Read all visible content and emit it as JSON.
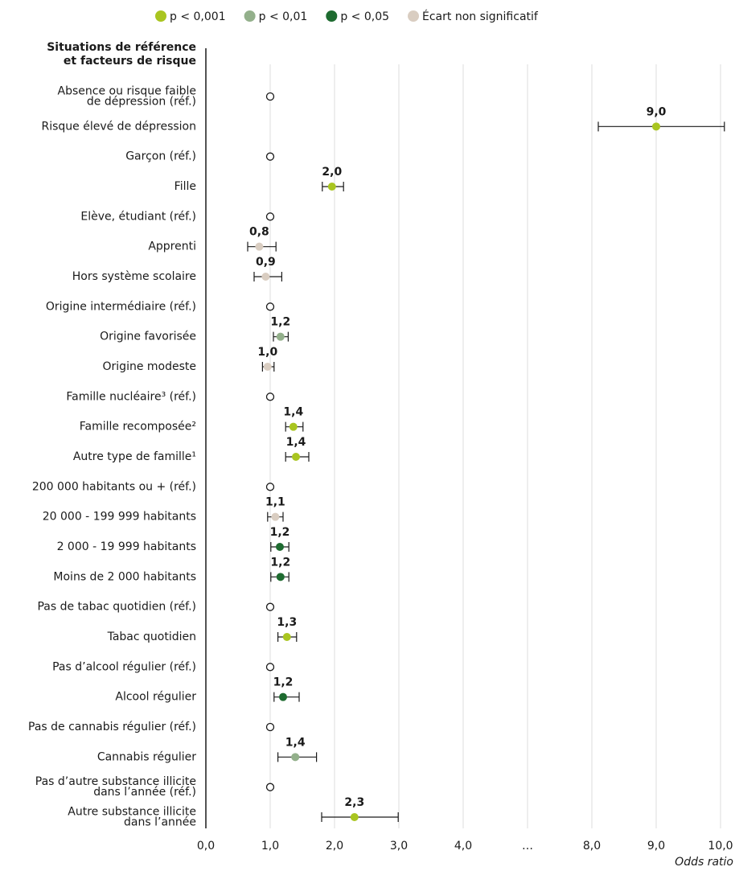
{
  "chart_data": {
    "type": "forest",
    "header": [
      "Situations de référence",
      "et facteurs de risque"
    ],
    "series": [
      {
        "name": "p < 0,001",
        "color": "#a9c520"
      },
      {
        "name": "p < 0,01",
        "color": "#93b08b"
      },
      {
        "name": "p < 0,05",
        "color": "#1e6b30"
      },
      {
        "name": "Écart non significatif",
        "color": "#d9cdc1"
      }
    ],
    "rows": [
      {
        "label": [
          "Absence ou risque faible",
          "de dépression (réf.)"
        ],
        "value": 1,
        "reference": true
      },
      {
        "label": [
          "Risque élevé de dépression"
        ],
        "value": 9.0,
        "value_label": "9,0",
        "ci": [
          8.1,
          10.06
        ],
        "series": 0
      },
      {
        "label": [
          "Garçon (réf.)"
        ],
        "value": 1,
        "reference": true
      },
      {
        "label": [
          "Fille"
        ],
        "value": 1.96,
        "value_label": "2,0",
        "ci": [
          1.81,
          2.14
        ],
        "series": 0
      },
      {
        "label": [
          "Elève, étudiant (réf.)"
        ],
        "value": 1,
        "reference": true
      },
      {
        "label": [
          "Apprenti"
        ],
        "value": 0.83,
        "value_label": "0,8",
        "ci": [
          0.65,
          1.09
        ],
        "series": 3
      },
      {
        "label": [
          "Hors système scolaire"
        ],
        "value": 0.93,
        "value_label": "0,9",
        "ci": [
          0.75,
          1.18
        ],
        "series": 3
      },
      {
        "label": [
          "Origine intermédiaire (réf.)"
        ],
        "value": 1,
        "reference": true
      },
      {
        "label": [
          "Origine favorisée"
        ],
        "value": 1.16,
        "value_label": "1,2",
        "ci": [
          1.05,
          1.28
        ],
        "series": 1
      },
      {
        "label": [
          "Origine modeste"
        ],
        "value": 0.96,
        "value_label": "1,0",
        "ci": [
          0.88,
          1.06
        ],
        "series": 3
      },
      {
        "label": [
          "Famille nucléaire³ (réf.)"
        ],
        "value": 1,
        "reference": true
      },
      {
        "label": [
          "Famille recomposée²"
        ],
        "value": 1.36,
        "value_label": "1,4",
        "ci": [
          1.24,
          1.51
        ],
        "series": 0
      },
      {
        "label": [
          "Autre type de famille¹"
        ],
        "value": 1.4,
        "value_label": "1,4",
        "ci": [
          1.24,
          1.6
        ],
        "series": 0
      },
      {
        "label": [
          "200 000 habitants ou + (réf.)"
        ],
        "value": 1,
        "reference": true
      },
      {
        "label": [
          "20 000 - 199 999 habitants"
        ],
        "value": 1.08,
        "value_label": "1,1",
        "ci": [
          0.96,
          1.2
        ],
        "series": 3
      },
      {
        "label": [
          "2 000 - 19 999 habitants"
        ],
        "value": 1.15,
        "value_label": "1,2",
        "ci": [
          1.01,
          1.29
        ],
        "series": 2
      },
      {
        "label": [
          "Moins de 2 000 habitants"
        ],
        "value": 1.16,
        "value_label": "1,2",
        "ci": [
          1.01,
          1.29
        ],
        "series": 2
      },
      {
        "label": [
          "Pas de tabac quotidien (réf.)"
        ],
        "value": 1,
        "reference": true
      },
      {
        "label": [
          "Tabac quotidien"
        ],
        "value": 1.26,
        "value_label": "1,3",
        "ci": [
          1.12,
          1.41
        ],
        "series": 0
      },
      {
        "label": [
          "Pas d’alcool régulier (réf.)"
        ],
        "value": 1,
        "reference": true
      },
      {
        "label": [
          "Alcool régulier"
        ],
        "value": 1.2,
        "value_label": "1,2",
        "ci": [
          1.06,
          1.45
        ],
        "series": 2
      },
      {
        "label": [
          "Pas de cannabis régulier (réf.)"
        ],
        "value": 1,
        "reference": true
      },
      {
        "label": [
          "Cannabis régulier"
        ],
        "value": 1.39,
        "value_label": "1,4",
        "ci": [
          1.12,
          1.72
        ],
        "series": 1
      },
      {
        "label": [
          "Pas d’autre substance illicite",
          "dans l’année (réf.)"
        ],
        "value": 1,
        "reference": true
      },
      {
        "label": [
          "Autre substance illicite",
          "dans l’année"
        ],
        "value": 2.31,
        "value_label": "2,3",
        "ci": [
          1.8,
          2.99
        ],
        "series": 0
      }
    ],
    "xlabel": "Odds ratio",
    "xlim": [
      0,
      10
    ],
    "xbreak": [
      5,
      7
    ],
    "xticks": [
      {
        "value": 0,
        "label": "0,0"
      },
      {
        "value": 1,
        "label": "1,0"
      },
      {
        "value": 2,
        "label": "2,0"
      },
      {
        "value": 3,
        "label": "3,0"
      },
      {
        "value": 4,
        "label": "4,0"
      },
      {
        "value": 6,
        "label": "…"
      },
      {
        "value": 8,
        "label": "8,0"
      },
      {
        "value": 9,
        "label": "9,0"
      },
      {
        "value": 10,
        "label": "10,0"
      }
    ],
    "grid": true
  }
}
